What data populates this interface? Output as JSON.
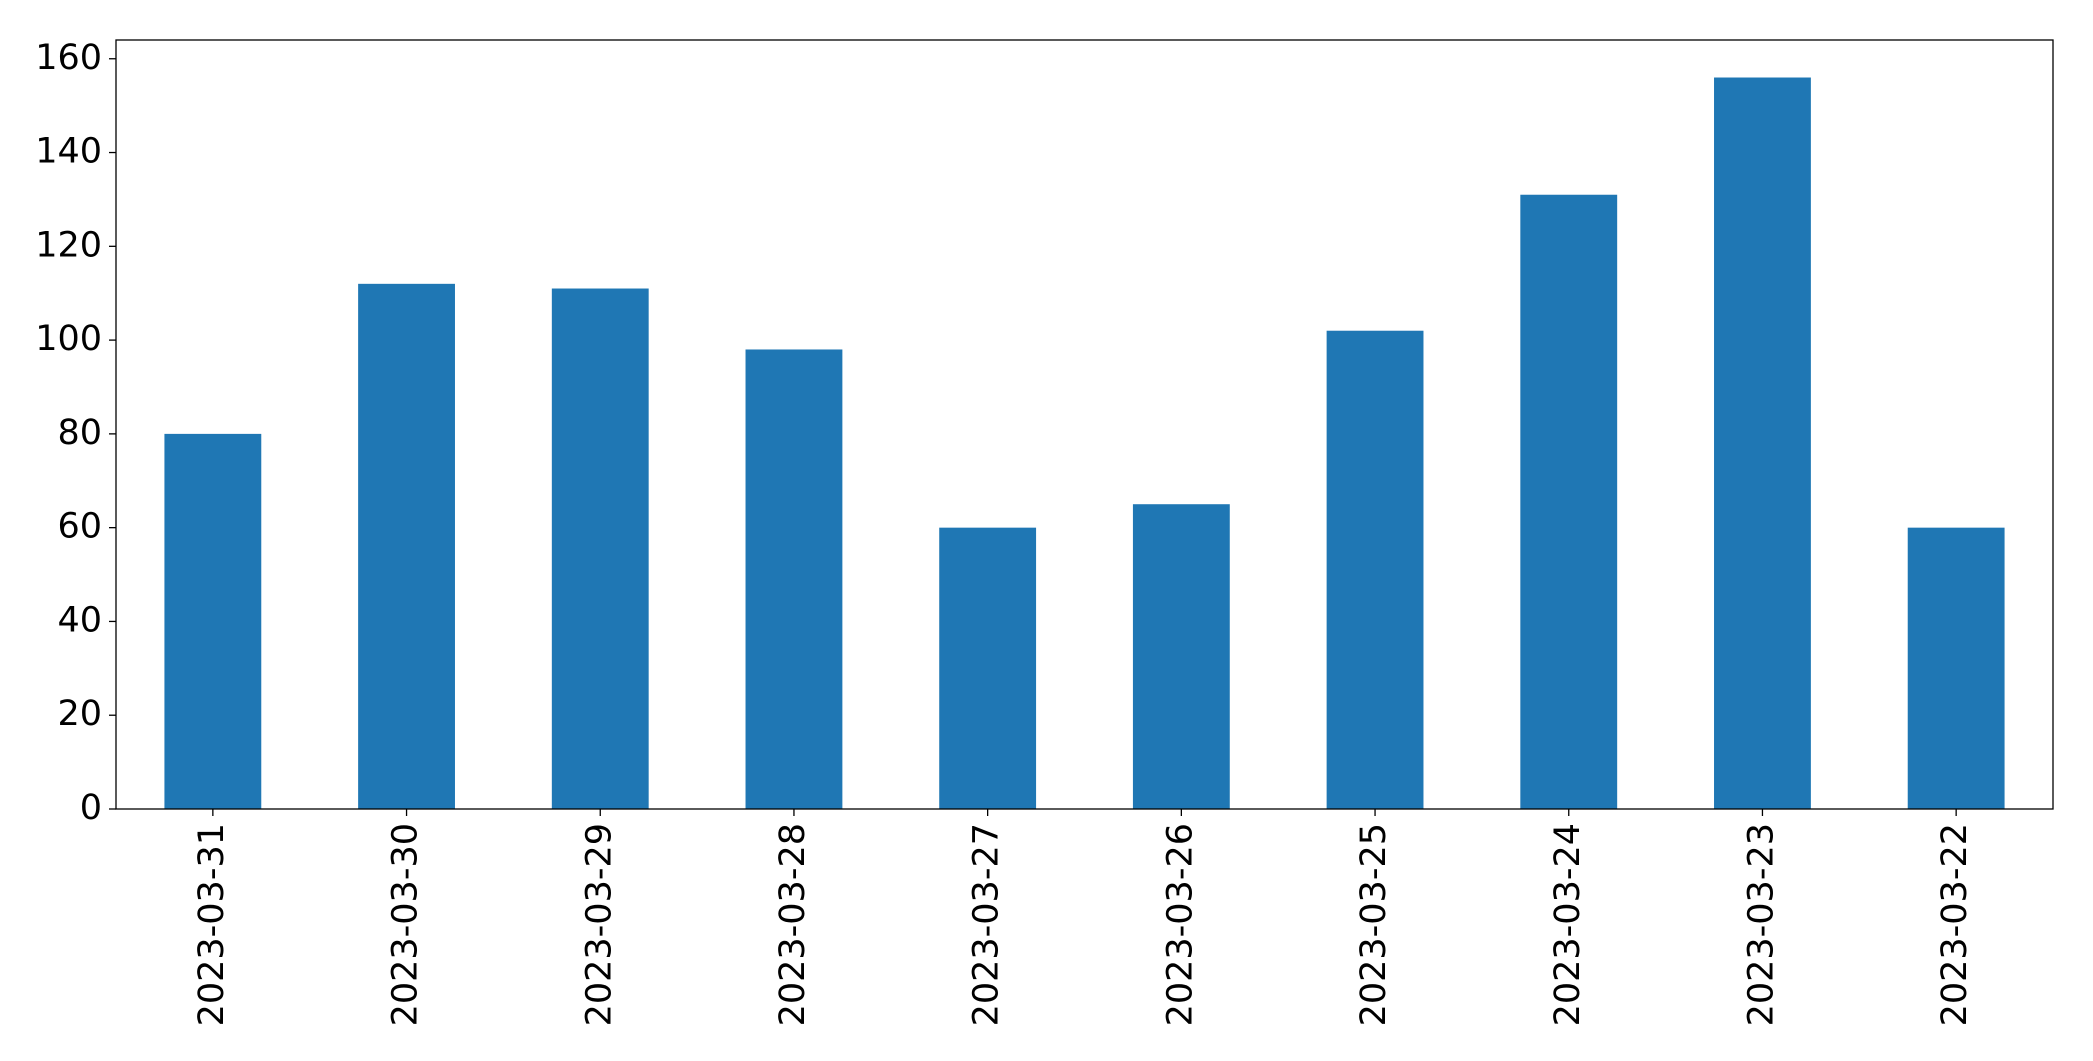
{
  "chart_data": {
    "type": "bar",
    "categories": [
      "2023-03-31",
      "2023-03-30",
      "2023-03-29",
      "2023-03-28",
      "2023-03-27",
      "2023-03-26",
      "2023-03-25",
      "2023-03-24",
      "2023-03-23",
      "2023-03-22"
    ],
    "values": [
      80,
      112,
      111,
      98,
      60,
      65,
      102,
      131,
      156,
      60
    ],
    "color": "#1f77b4",
    "ylim": [
      0,
      164
    ],
    "yticks": [
      0,
      20,
      40,
      60,
      80,
      100,
      120,
      140,
      160
    ],
    "grid": false
  }
}
